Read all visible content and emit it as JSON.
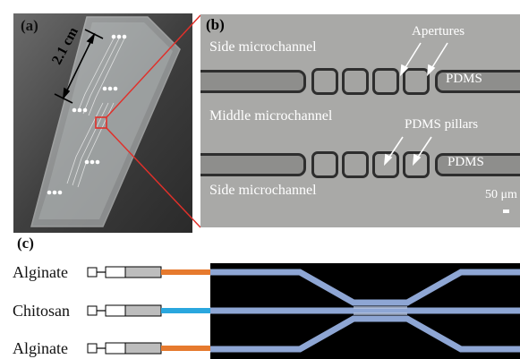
{
  "panels": {
    "a": {
      "label": "(a)",
      "dimension": "2.1 cm"
    },
    "b": {
      "label": "(b)",
      "side_top": "Side microchannel",
      "middle": "Middle microchannel",
      "side_bottom": "Side microchannel",
      "apertures": "Apertures",
      "pdms_pillars": "PDMS pillars",
      "pdms_top": "PDMS",
      "pdms_bottom": "PDMS",
      "scale": "50 μm"
    },
    "c": {
      "label": "(c)",
      "inlets": [
        "Alginate",
        "Chitosan",
        "Alginate"
      ]
    }
  },
  "colors": {
    "alginate_tube": "#e67a2e",
    "chitosan_tube": "#2aa7de",
    "channel": "#8ea6d4",
    "highlight_box": "#e0302a"
  }
}
